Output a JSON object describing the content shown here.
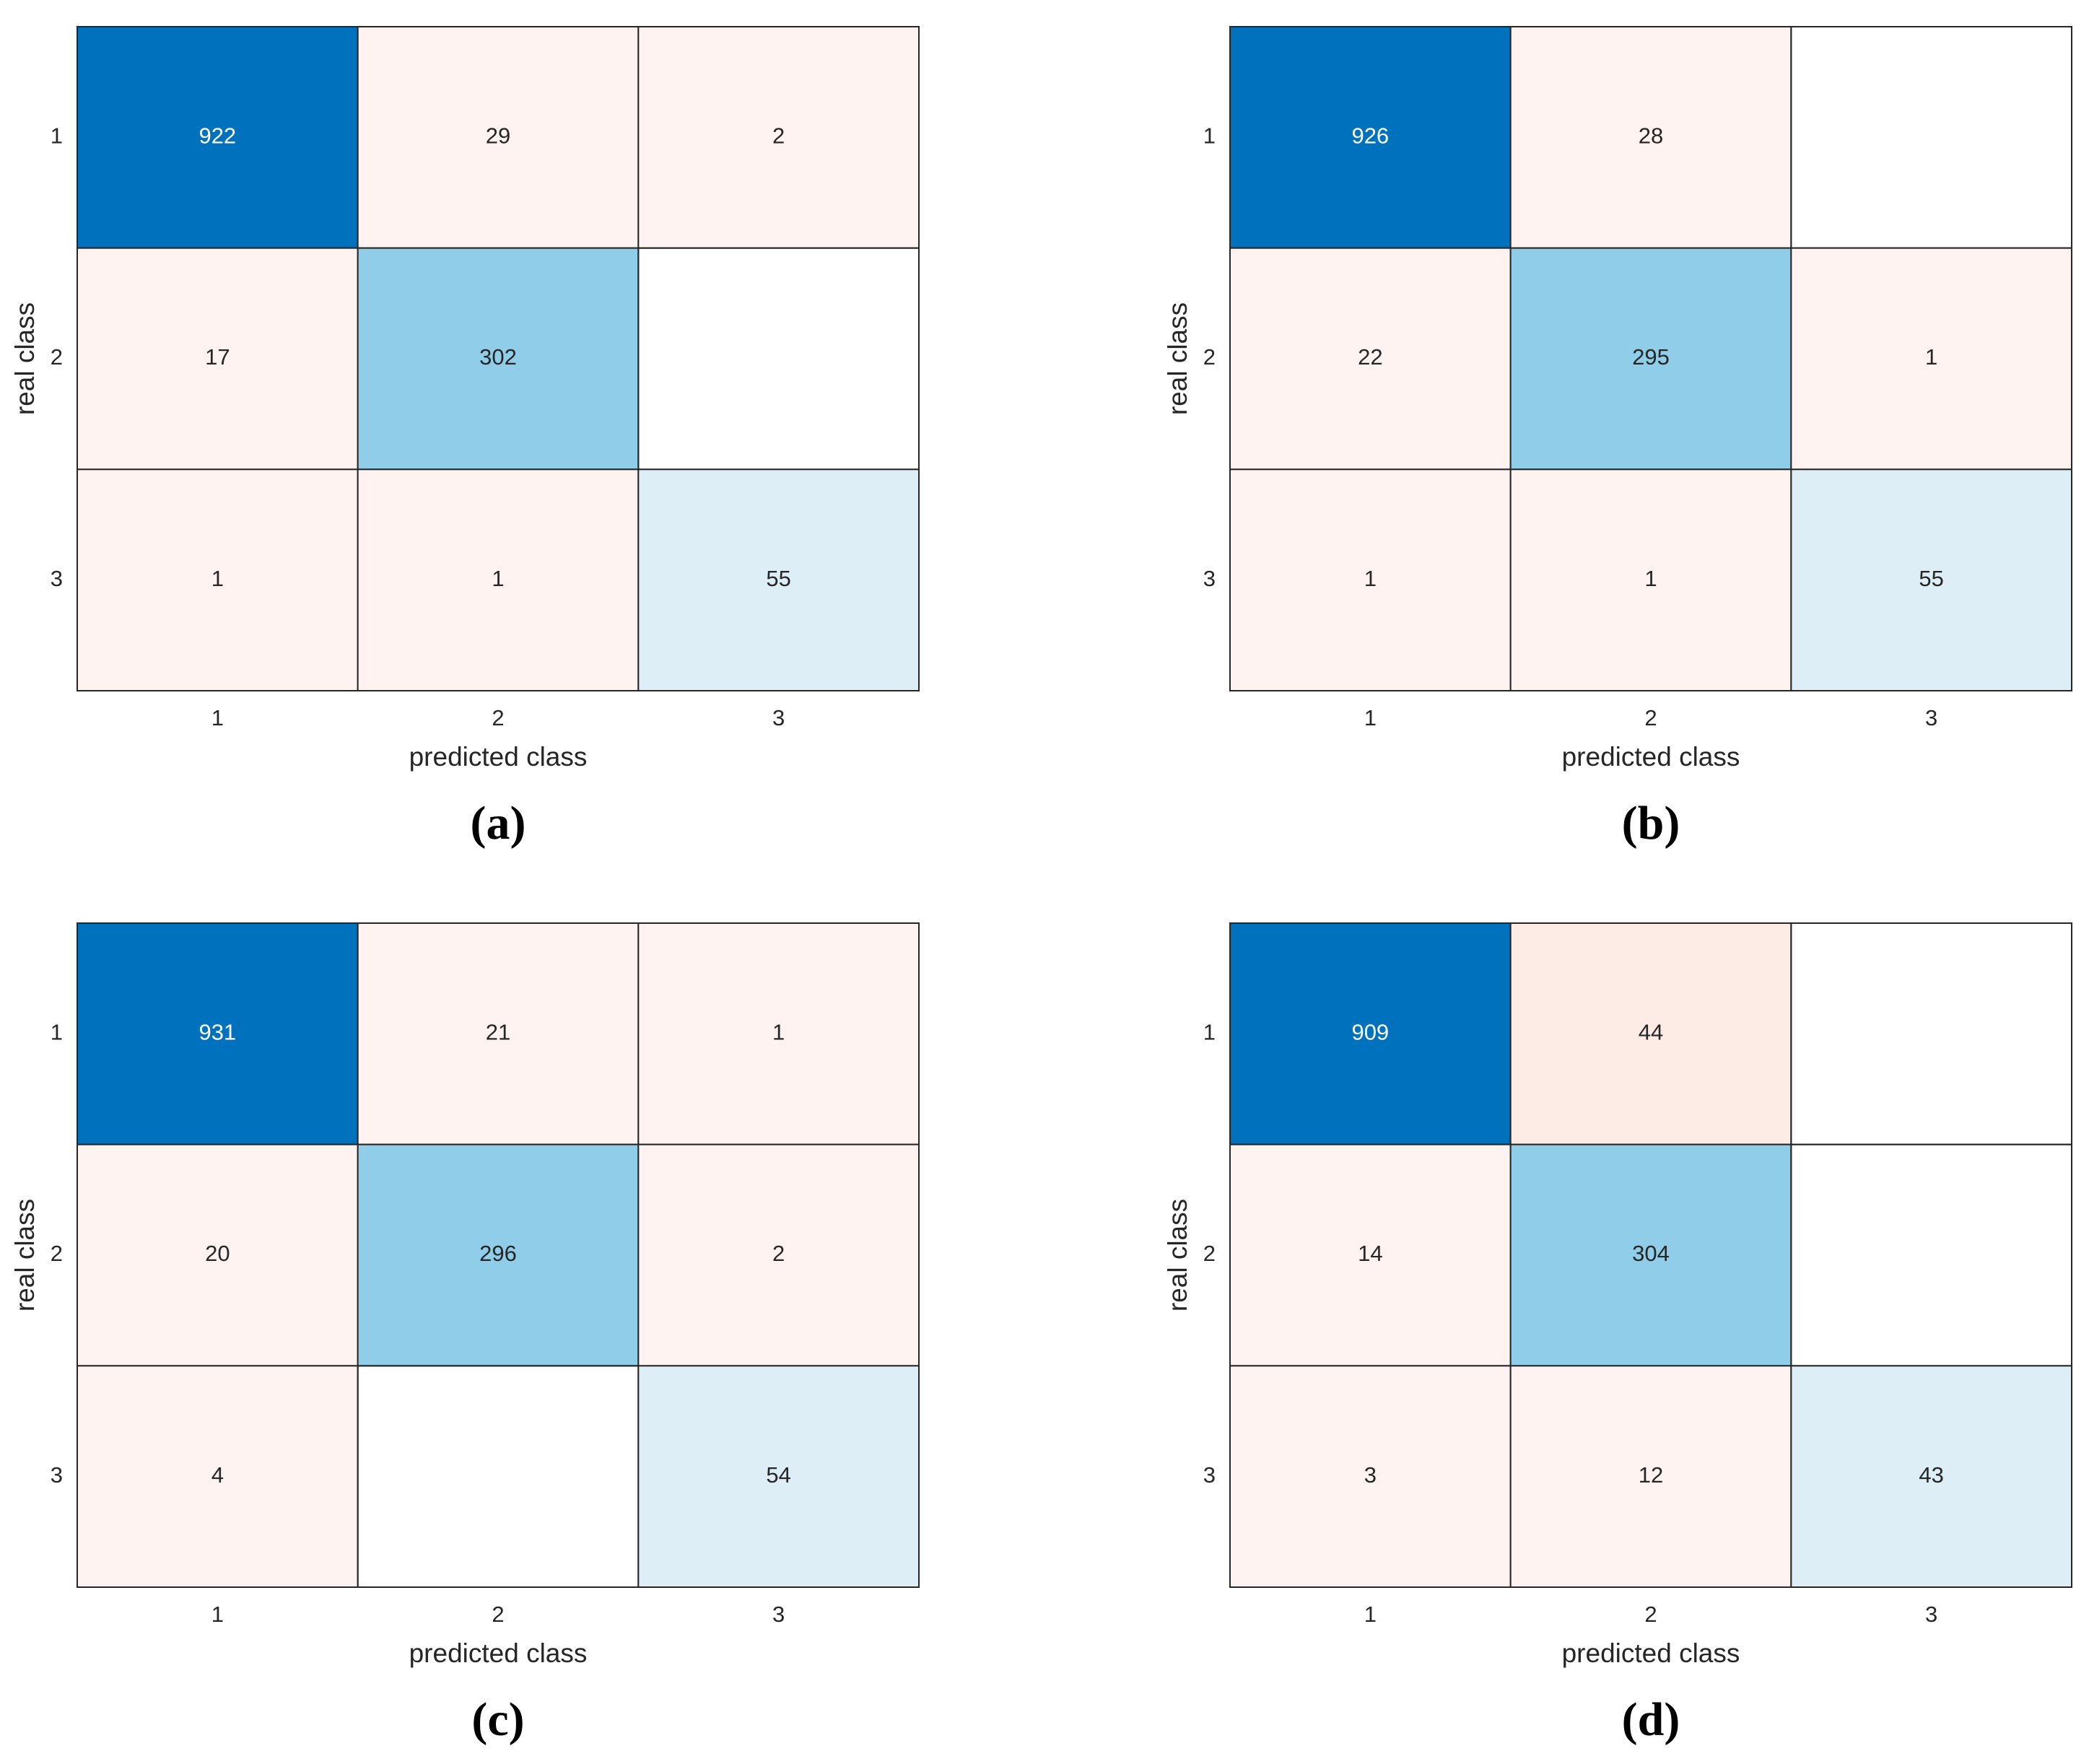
{
  "chart_data": [
    {
      "type": "heatmap",
      "caption": "(a)",
      "x_label": "predicted class",
      "y_label": "real class",
      "x_categories": [
        "1",
        "2",
        "3"
      ],
      "y_categories": [
        "1",
        "2",
        "3"
      ],
      "values": [
        [
          922,
          29,
          2
        ],
        [
          17,
          302,
          null
        ],
        [
          1,
          1,
          55
        ]
      ],
      "colors": [
        [
          "#0072bd",
          "#fef3f0",
          "#fef3f0"
        ],
        [
          "#fef3f0",
          "#90cde8",
          null
        ],
        [
          "#fef3f0",
          "#fef3f0",
          "#ddeef7"
        ]
      ]
    },
    {
      "type": "heatmap",
      "caption": "(b)",
      "x_label": "predicted class",
      "y_label": "real class",
      "x_categories": [
        "1",
        "2",
        "3"
      ],
      "y_categories": [
        "1",
        "2",
        "3"
      ],
      "values": [
        [
          926,
          28,
          null
        ],
        [
          22,
          295,
          1
        ],
        [
          1,
          1,
          55
        ]
      ],
      "colors": [
        [
          "#0072bd",
          "#fef3f0",
          null
        ],
        [
          "#fef3f0",
          "#90cde8",
          "#fef3f0"
        ],
        [
          "#fef3f0",
          "#fef3f0",
          "#ddeef7"
        ]
      ]
    },
    {
      "type": "heatmap",
      "caption": "(c)",
      "x_label": "predicted class",
      "y_label": "real class",
      "x_categories": [
        "1",
        "2",
        "3"
      ],
      "y_categories": [
        "1",
        "2",
        "3"
      ],
      "values": [
        [
          931,
          21,
          1
        ],
        [
          20,
          296,
          2
        ],
        [
          4,
          null,
          54
        ]
      ],
      "colors": [
        [
          "#0072bd",
          "#fef3f0",
          "#fef3f0"
        ],
        [
          "#fef3f0",
          "#90cde8",
          "#fef3f0"
        ],
        [
          "#fef3f0",
          null,
          "#ddeef7"
        ]
      ]
    },
    {
      "type": "heatmap",
      "caption": "(d)",
      "x_label": "predicted class",
      "y_label": "real class",
      "x_categories": [
        "1",
        "2",
        "3"
      ],
      "y_categories": [
        "1",
        "2",
        "3"
      ],
      "values": [
        [
          909,
          44,
          null
        ],
        [
          14,
          304,
          null
        ],
        [
          3,
          12,
          43
        ]
      ],
      "colors": [
        [
          "#0072bd",
          "#fdebe5",
          null
        ],
        [
          "#fef3f0",
          "#90cde8",
          null
        ],
        [
          "#fef3f0",
          "#fef3f0",
          "#ddeef7"
        ]
      ]
    }
  ]
}
